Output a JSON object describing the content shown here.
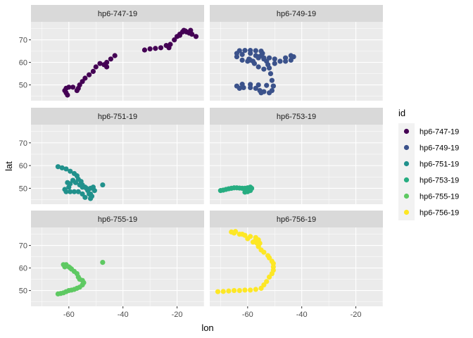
{
  "chart_data": {
    "type": "scatter",
    "facet": "id",
    "xlabel": "lon",
    "ylabel": "lat",
    "xlim": [
      -74,
      -10
    ],
    "ylim": [
      43,
      78
    ],
    "xticks": [
      -60,
      -40,
      -20
    ],
    "yticks": [
      50,
      60,
      70
    ],
    "grid": true,
    "legend_title": "id",
    "legend_position": "right",
    "series": [
      {
        "name": "hp6-747-19",
        "color": "#440154",
        "points": [
          [
            -60.5,
            45.5
          ],
          [
            -61,
            46.5
          ],
          [
            -61.5,
            47.5
          ],
          [
            -61,
            48.5
          ],
          [
            -60,
            49
          ],
          [
            -58.5,
            49
          ],
          [
            -57,
            47.5
          ],
          [
            -56.5,
            48.5
          ],
          [
            -56,
            50
          ],
          [
            -55,
            51.5
          ],
          [
            -54,
            53
          ],
          [
            -52.5,
            54.5
          ],
          [
            -51,
            56
          ],
          [
            -50,
            58
          ],
          [
            -48.5,
            59.5
          ],
          [
            -47,
            59
          ],
          [
            -46,
            58
          ],
          [
            -46,
            60
          ],
          [
            -44.5,
            61.5
          ],
          [
            -43,
            63
          ],
          [
            -32,
            65.5
          ],
          [
            -30,
            66
          ],
          [
            -28,
            66.2
          ],
          [
            -26,
            66.5
          ],
          [
            -24,
            67.5
          ],
          [
            -23,
            66.5
          ],
          [
            -22.5,
            68
          ],
          [
            -21,
            70
          ],
          [
            -20,
            71.5
          ],
          [
            -19,
            72.5
          ],
          [
            -18,
            73.5
          ],
          [
            -17,
            74
          ],
          [
            -16.5,
            73.5
          ],
          [
            -15.5,
            73
          ],
          [
            -14.5,
            72.5
          ],
          [
            -13,
            71.5
          ],
          [
            -15,
            74.2
          ],
          [
            -17.5,
            74.2
          ],
          [
            -19,
            72
          ]
        ]
      },
      {
        "name": "hp6-749-19",
        "color": "#3b528b",
        "points": [
          [
            -64,
            64
          ],
          [
            -63,
            65.2
          ],
          [
            -61,
            65.3
          ],
          [
            -59,
            65.3
          ],
          [
            -57,
            65.2
          ],
          [
            -55,
            65
          ],
          [
            -54.5,
            64
          ],
          [
            -55,
            63
          ],
          [
            -56,
            62.5
          ],
          [
            -54,
            61.5
          ],
          [
            -53,
            60.5
          ],
          [
            -52.5,
            59
          ],
          [
            -52,
            57.5
          ],
          [
            -54,
            57
          ],
          [
            -56,
            58
          ],
          [
            -57.5,
            59.5
          ],
          [
            -58,
            60.5
          ],
          [
            -59,
            61
          ],
          [
            -59.5,
            61.5
          ],
          [
            -60,
            60.5
          ],
          [
            -62,
            61
          ],
          [
            -64,
            62.5
          ],
          [
            -62,
            63.5
          ],
          [
            -59,
            64
          ],
          [
            -57,
            63
          ],
          [
            -56,
            62
          ],
          [
            -54,
            62
          ],
          [
            -52,
            62
          ],
          [
            -50,
            61.5
          ],
          [
            -48,
            60.5
          ],
          [
            -46,
            60.5
          ],
          [
            -44,
            61
          ],
          [
            -43,
            62.5
          ],
          [
            -44,
            63
          ],
          [
            -46,
            62
          ],
          [
            -48,
            60.5
          ],
          [
            -50,
            59.5
          ],
          [
            -51.5,
            55
          ],
          [
            -51,
            52
          ],
          [
            -50.5,
            49.5
          ],
          [
            -51,
            47.5
          ],
          [
            -52,
            46.5
          ],
          [
            -54,
            47
          ],
          [
            -55,
            46.5
          ],
          [
            -55.5,
            47.5
          ],
          [
            -57,
            48.5
          ],
          [
            -59,
            48.8
          ],
          [
            -61.5,
            48.8
          ],
          [
            -63,
            48.5
          ],
          [
            -64,
            49.5
          ],
          [
            -62,
            50.3
          ],
          [
            -59,
            50.2
          ],
          [
            -56,
            50
          ],
          [
            -53,
            49.8
          ],
          [
            -50.5,
            49.5
          ]
        ]
      },
      {
        "name": "hp6-751-19",
        "color": "#21918c",
        "points": [
          [
            -64,
            59.5
          ],
          [
            -62.5,
            59
          ],
          [
            -61,
            58.5
          ],
          [
            -59.5,
            57.5
          ],
          [
            -58,
            56.5
          ],
          [
            -57,
            55.5
          ],
          [
            -56.5,
            54
          ],
          [
            -55.5,
            53
          ],
          [
            -55,
            51.5
          ],
          [
            -54,
            50.5
          ],
          [
            -53,
            49
          ],
          [
            -52,
            47.5
          ],
          [
            -51.5,
            46.5
          ],
          [
            -52,
            45.5
          ],
          [
            -54,
            46
          ],
          [
            -55,
            47.5
          ],
          [
            -56.5,
            48.5
          ],
          [
            -58,
            48.5
          ],
          [
            -59.5,
            48.5
          ],
          [
            -61,
            48.5
          ],
          [
            -61.5,
            49.5
          ],
          [
            -60,
            50.5
          ],
          [
            -59.5,
            52
          ],
          [
            -60.5,
            52.5
          ],
          [
            -58.5,
            53.5
          ],
          [
            -57.5,
            52.5
          ],
          [
            -56,
            51.5
          ],
          [
            -55,
            50.5
          ],
          [
            -53.5,
            50
          ],
          [
            -52,
            50
          ],
          [
            -50.5,
            49
          ],
          [
            -47.5,
            51.5
          ],
          [
            -51,
            50.5
          ],
          [
            -52.5,
            47.5
          ]
        ]
      },
      {
        "name": "hp6-753-19",
        "color": "#27ad81",
        "points": [
          [
            -70,
            49
          ],
          [
            -69,
            49.2
          ],
          [
            -68,
            49.5
          ],
          [
            -67,
            49.8
          ],
          [
            -66,
            50
          ],
          [
            -65,
            50.2
          ],
          [
            -64,
            50.2
          ],
          [
            -63,
            50.1
          ],
          [
            -62,
            50
          ],
          [
            -61,
            50
          ],
          [
            -60,
            50.2
          ],
          [
            -59,
            50.5
          ],
          [
            -58.5,
            50
          ],
          [
            -59,
            49
          ],
          [
            -60,
            48.5
          ],
          [
            -61,
            48.3
          ]
        ]
      },
      {
        "name": "hp6-755-19",
        "color": "#5ec962",
        "points": [
          [
            -64,
            48.5
          ],
          [
            -63,
            48.7
          ],
          [
            -62,
            49
          ],
          [
            -61,
            49.5
          ],
          [
            -60,
            50
          ],
          [
            -59,
            50.2
          ],
          [
            -58,
            50.5
          ],
          [
            -57,
            51
          ],
          [
            -56,
            51.5
          ],
          [
            -55,
            52.5
          ],
          [
            -54.5,
            53.5
          ],
          [
            -55,
            54.5
          ],
          [
            -56,
            55
          ],
          [
            -56.5,
            56
          ],
          [
            -57,
            57.5
          ],
          [
            -58,
            58.5
          ],
          [
            -59,
            59.5
          ],
          [
            -60,
            60.5
          ],
          [
            -61,
            61.5
          ],
          [
            -62,
            61.5
          ],
          [
            -61.5,
            60.5
          ],
          [
            -59.5,
            60
          ],
          [
            -47.5,
            62.5
          ]
        ]
      },
      {
        "name": "hp6-756-19",
        "color": "#fde725",
        "points": [
          [
            -71,
            49.5
          ],
          [
            -69,
            49.6
          ],
          [
            -67,
            49.8
          ],
          [
            -65,
            50
          ],
          [
            -63,
            50
          ],
          [
            -61,
            50.2
          ],
          [
            -59,
            50.2
          ],
          [
            -57,
            50.5
          ],
          [
            -55,
            51
          ],
          [
            -54,
            52.5
          ],
          [
            -53,
            54
          ],
          [
            -52,
            56
          ],
          [
            -51,
            57.5
          ],
          [
            -50.5,
            59
          ],
          [
            -50.5,
            60.5
          ],
          [
            -50.5,
            62
          ],
          [
            -51,
            63
          ],
          [
            -52,
            64.5
          ],
          [
            -52.5,
            65.5
          ],
          [
            -54,
            67
          ],
          [
            -55,
            68
          ],
          [
            -56,
            69.5
          ],
          [
            -55.5,
            71
          ],
          [
            -56,
            72.5
          ],
          [
            -57,
            73.5
          ],
          [
            -59,
            74
          ],
          [
            -61,
            74.5
          ],
          [
            -63,
            75
          ],
          [
            -65,
            75.5
          ],
          [
            -66,
            76
          ],
          [
            -64.5,
            76.2
          ],
          [
            -62,
            75
          ],
          [
            -60,
            73
          ],
          [
            -58,
            71.5
          ],
          [
            -56.5,
            71
          ],
          [
            -57.5,
            71.8
          ]
        ]
      }
    ]
  }
}
